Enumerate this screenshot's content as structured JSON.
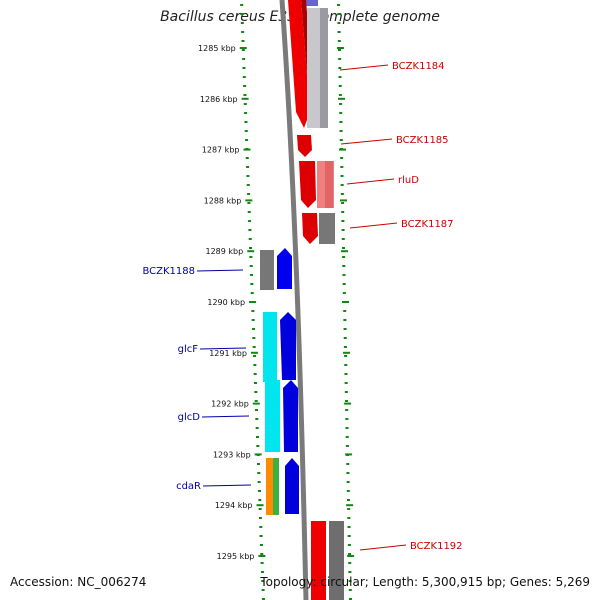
{
  "title": "Bacillus cereus E33L, complete genome",
  "footer": {
    "accession": "Accession: NC_006274",
    "summary": "Topology: circular; Length: 5,300,915 bp; Genes: 5,269"
  },
  "colors": {
    "tick": "#118811",
    "backbone": "#808080",
    "right_label": "#cc0000",
    "left_label": "#0000aa"
  },
  "ticks": [
    {
      "label": "1285 kbp"
    },
    {
      "label": "1286 kbp"
    },
    {
      "label": "1287 kbp"
    },
    {
      "label": "1288 kbp"
    },
    {
      "label": "1289 kbp"
    },
    {
      "label": "1290 kbp"
    },
    {
      "label": "1291 kbp"
    },
    {
      "label": "1292 kbp"
    },
    {
      "label": "1293 kbp"
    },
    {
      "label": "1294 kbp"
    },
    {
      "label": "1295 kbp"
    }
  ],
  "right_labels": [
    {
      "text": "BCZK1184"
    },
    {
      "text": "BCZK1185"
    },
    {
      "text": "rluD"
    },
    {
      "text": "BCZK1187"
    },
    {
      "text": "BCZK1192"
    }
  ],
  "left_labels": [
    {
      "text": "BCZK1188"
    },
    {
      "text": "glcF"
    },
    {
      "text": "glcD"
    },
    {
      "text": "cdaR"
    }
  ]
}
